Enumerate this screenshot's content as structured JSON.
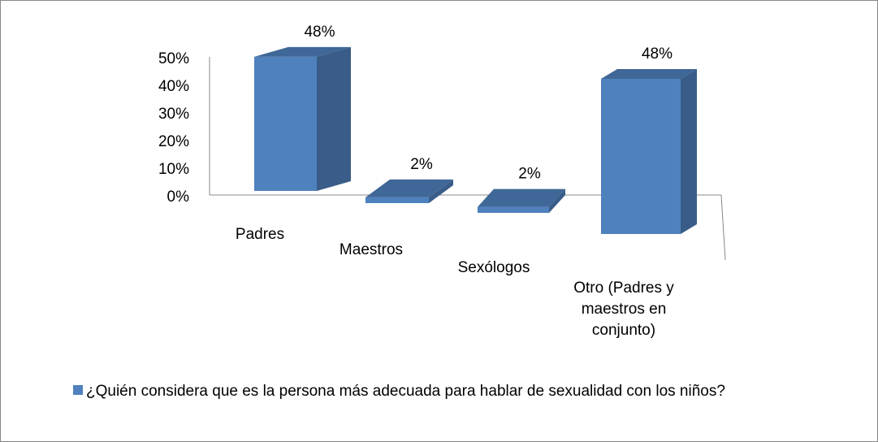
{
  "chart_data": {
    "type": "bar3d",
    "categories": [
      "Padres",
      "Maestros",
      "Sexólogos",
      "Otro (Padres y maestros en conjunto)"
    ],
    "series": [
      {
        "name": "¿Quién considera que es la persona más adecuada para hablar de sexualidad con los niños?",
        "color": "#4f81bd",
        "values": [
          48,
          2,
          2,
          48
        ],
        "value_labels": [
          "48%",
          "2%",
          "2%",
          "48%"
        ]
      }
    ],
    "ylim": [
      0,
      50
    ],
    "yticks": [
      {
        "value": 0,
        "label": "0%"
      },
      {
        "value": 10,
        "label": "10%"
      },
      {
        "value": 20,
        "label": "20%"
      },
      {
        "value": 30,
        "label": "30%"
      },
      {
        "value": 40,
        "label": "40%"
      },
      {
        "value": 50,
        "label": "50%"
      }
    ],
    "legend": "bottom"
  }
}
